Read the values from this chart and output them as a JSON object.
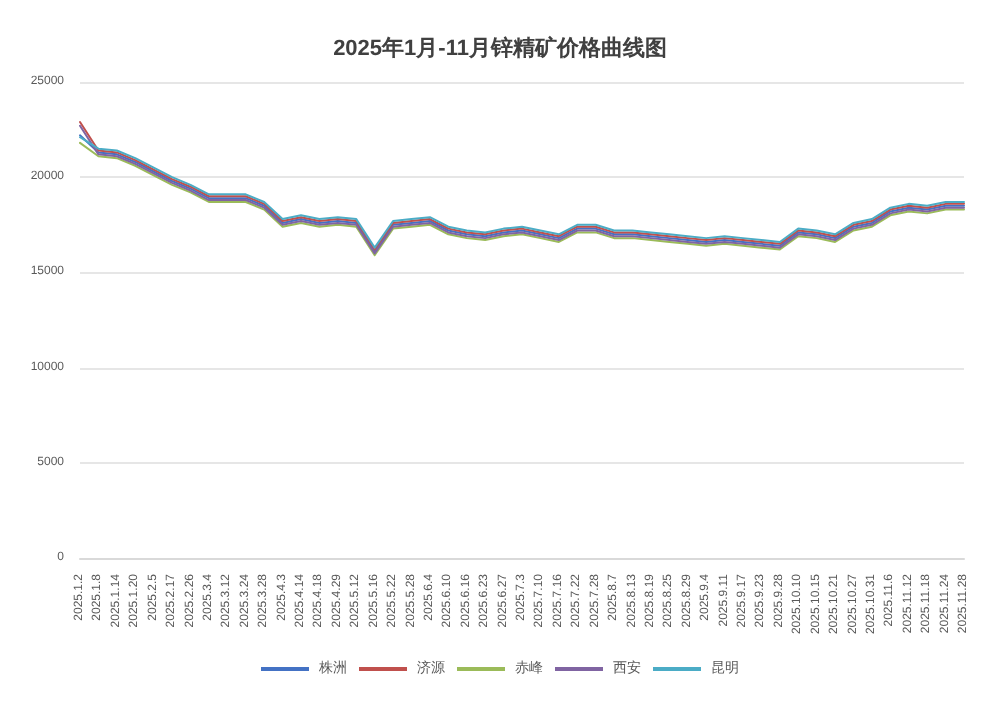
{
  "chart_data": {
    "type": "line",
    "title": "2025年1月-11月锌精矿价格曲线图",
    "categories": [
      "2025.1.2",
      "2025.1.8",
      "2025.1.14",
      "2025.1.20",
      "2025.2.5",
      "2025.2.17",
      "2025.2.26",
      "2025.3.4",
      "2025.3.12",
      "2025.3.24",
      "2025.3.28",
      "2025.4.3",
      "2025.4.14",
      "2025.4.18",
      "2025.4.29",
      "2025.5.12",
      "2025.5.16",
      "2025.5.22",
      "2025.5.28",
      "2025.6.4",
      "2025.6.10",
      "2025.6.16",
      "2025.6.23",
      "2025.6.27",
      "2025.7.3",
      "2025.7.10",
      "2025.7.16",
      "2025.7.22",
      "2025.7.28",
      "2025.8.7",
      "2025.8.13",
      "2025.8.19",
      "2025.8.25",
      "2025.8.29",
      "2025.9.4",
      "2025.9.11",
      "2025.9.17",
      "2025.9.23",
      "2025.9.28",
      "2025.10.10",
      "2025.10.15",
      "2025.10.21",
      "2025.10.27",
      "2025.10.31",
      "2025.11.6",
      "2025.11.12",
      "2025.11.18",
      "2025.11.24",
      "2025.11.28"
    ],
    "series": [
      {
        "name": "株洲",
        "color": "#4472c4",
        "values": [
          22200,
          21300,
          21200,
          20800,
          20300,
          19800,
          19400,
          18900,
          18900,
          18900,
          18500,
          17600,
          17800,
          17600,
          17700,
          17600,
          16100,
          17500,
          17600,
          17700,
          17200,
          17000,
          16900,
          17100,
          17200,
          17000,
          16800,
          17300,
          17300,
          17000,
          17000,
          16900,
          16800,
          16700,
          16600,
          16700,
          16600,
          16500,
          16400,
          17100,
          17000,
          16800,
          17400,
          17600,
          18200,
          18400,
          18300,
          18500,
          18500
        ]
      },
      {
        "name": "济源",
        "color": "#c0504d",
        "values": [
          22900,
          21400,
          21300,
          20900,
          20400,
          19900,
          19500,
          19000,
          19000,
          19000,
          18600,
          17700,
          17900,
          17700,
          17800,
          17700,
          16200,
          17600,
          17700,
          17800,
          17300,
          17100,
          17000,
          17200,
          17300,
          17100,
          16900,
          17400,
          17400,
          17100,
          17100,
          17000,
          16900,
          16800,
          16700,
          16800,
          16700,
          16600,
          16500,
          17200,
          17100,
          16900,
          17500,
          17700,
          18300,
          18500,
          18400,
          18600,
          18600
        ]
      },
      {
        "name": "赤峰",
        "color": "#9bbb59",
        "values": [
          21800,
          21100,
          21000,
          20600,
          20100,
          19600,
          19200,
          18700,
          18700,
          18700,
          18300,
          17400,
          17600,
          17400,
          17500,
          17400,
          15900,
          17300,
          17400,
          17500,
          17000,
          16800,
          16700,
          16900,
          17000,
          16800,
          16600,
          17100,
          17100,
          16800,
          16800,
          16700,
          16600,
          16500,
          16400,
          16500,
          16400,
          16300,
          16200,
          16900,
          16800,
          16600,
          17200,
          17400,
          18000,
          18200,
          18100,
          18300,
          18300
        ]
      },
      {
        "name": "西安",
        "color": "#8064a2",
        "values": [
          22700,
          21200,
          21100,
          20700,
          20200,
          19700,
          19300,
          18800,
          18800,
          18800,
          18400,
          17500,
          17700,
          17500,
          17600,
          17500,
          16000,
          17400,
          17500,
          17600,
          17100,
          16900,
          16800,
          17000,
          17100,
          16900,
          16700,
          17200,
          17200,
          16900,
          16900,
          16800,
          16700,
          16600,
          16500,
          16600,
          16500,
          16400,
          16300,
          17000,
          16900,
          16700,
          17300,
          17500,
          18100,
          18300,
          18200,
          18400,
          18400
        ]
      },
      {
        "name": "昆明",
        "color": "#4bacc6",
        "values": [
          22100,
          21500,
          21400,
          21000,
          20500,
          20000,
          19600,
          19100,
          19100,
          19100,
          18700,
          17800,
          18000,
          17800,
          17900,
          17800,
          16300,
          17700,
          17800,
          17900,
          17400,
          17200,
          17100,
          17300,
          17400,
          17200,
          17000,
          17500,
          17500,
          17200,
          17200,
          17100,
          17000,
          16900,
          16800,
          16900,
          16800,
          16700,
          16600,
          17300,
          17200,
          17000,
          17600,
          17800,
          18400,
          18600,
          18500,
          18700,
          18700
        ]
      }
    ],
    "ylim": [
      0,
      25000
    ],
    "yticks": [
      0,
      5000,
      10000,
      15000,
      20000,
      25000
    ],
    "grid": "y",
    "legend": "bottom",
    "marker": "none",
    "line_style": "solid"
  }
}
